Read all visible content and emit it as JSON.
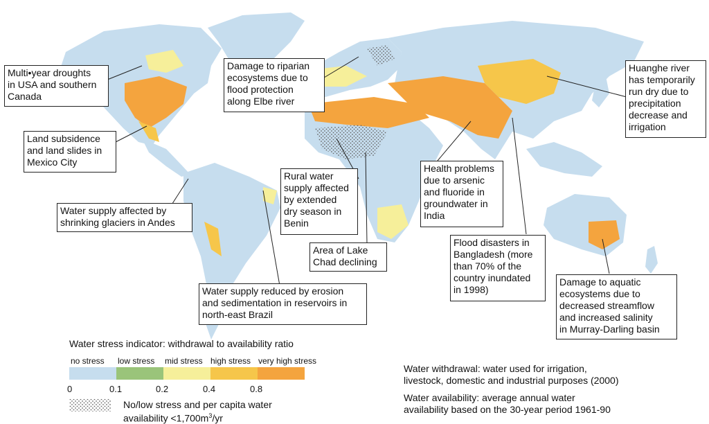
{
  "colors": {
    "ocean": "#ffffff",
    "no_stress": "#c6ddee",
    "low_stress": "#9ac47a",
    "mid_stress": "#f6ef9a",
    "high_stress": "#f6c64a",
    "very_high_stress": "#f4a43e"
  },
  "callouts": [
    {
      "id": "usa",
      "text": "Multi•year droughts\nin USA and southern\nCanada"
    },
    {
      "id": "mexico",
      "text": "Land subsidence\nand land slides in\nMexico City"
    },
    {
      "id": "andes",
      "text": "Water supply affected by\nshrinking glaciers in Andes"
    },
    {
      "id": "brazil",
      "text": "Water supply reduced by erosion\nand sedimentation in reservoirs in\nnorth-east Brazil"
    },
    {
      "id": "elbe",
      "text": "Damage to riparian\necosystems due to\nflood protection\nalong Elbe river"
    },
    {
      "id": "benin",
      "text": "Rural water\nsupply affected\nby extended\ndry season in\nBenin"
    },
    {
      "id": "chad",
      "text": "Area of Lake\nChad declining"
    },
    {
      "id": "india",
      "text": "Health problems\ndue to arsenic\nand fluoride in\ngroundwater in\nIndia"
    },
    {
      "id": "bangladesh",
      "text": "Flood disasters in\nBangladesh (more\nthan 70% of the\ncountry inundated\nin 1998)"
    },
    {
      "id": "huanghe",
      "text": "Huanghe river\nhas temporarily\nrun dry due to\nprecipitation\ndecrease and\nirrigation"
    },
    {
      "id": "murray",
      "text": "Damage to aquatic\necosystems due to\ndecreased streamflow\nand increased salinity\nin Murray-Darling basin"
    }
  ],
  "legend": {
    "title": "Water stress indicator: withdrawal to availability ratio",
    "categories": [
      "no stress",
      "low stress",
      "mid stress",
      "high stress",
      "very high stress"
    ],
    "ticks": [
      "0",
      "0.1",
      "0.2",
      "0.4",
      "0.8"
    ],
    "hatch_label_line1": "No/low stress and per capita water",
    "hatch_label_line2": "availability <1,700m",
    "hatch_sup": "3",
    "hatch_unit": "/yr"
  },
  "notes": {
    "withdrawal": "Water withdrawal: water used for irrigation,\nlivestock, domestic and industrial purposes (2000)",
    "availability": "Water availability: average annual water\navailability based on the 30-year period 1961-90"
  }
}
